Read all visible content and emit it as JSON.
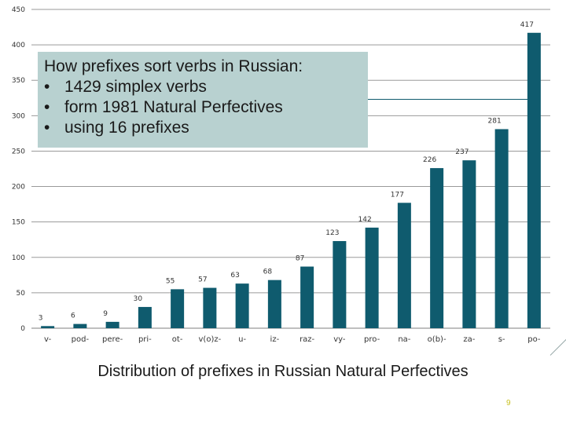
{
  "textbox": {
    "title": "How prefixes sort verbs in Russian:",
    "bullets": [
      "1429 simplex verbs",
      "form 1981 Natural Perfectives",
      "using 16 prefixes"
    ],
    "bullet_glyph": "•",
    "background": "#b8d1d0"
  },
  "caption": "Distribution of prefixes in Russian Natural Perfectives",
  "page_number": "9",
  "chart_data": {
    "type": "bar",
    "categories": [
      "v-",
      "pod-",
      "pere-",
      "pri-",
      "ot-",
      "v(o)z-",
      "u-",
      "iz-",
      "raz-",
      "vy-",
      "pro-",
      "na-",
      "o(b)-",
      "za-",
      "s-",
      "po-"
    ],
    "values": [
      3,
      6,
      9,
      30,
      55,
      57,
      63,
      68,
      87,
      123,
      142,
      177,
      226,
      237,
      281,
      417
    ],
    "ylim": [
      0,
      450
    ],
    "yticks": [
      0,
      50,
      100,
      150,
      200,
      250,
      300,
      350,
      400,
      450
    ],
    "grid": true,
    "bar_color": "#0f5b6e",
    "title": "",
    "xlabel": "",
    "ylabel": ""
  }
}
